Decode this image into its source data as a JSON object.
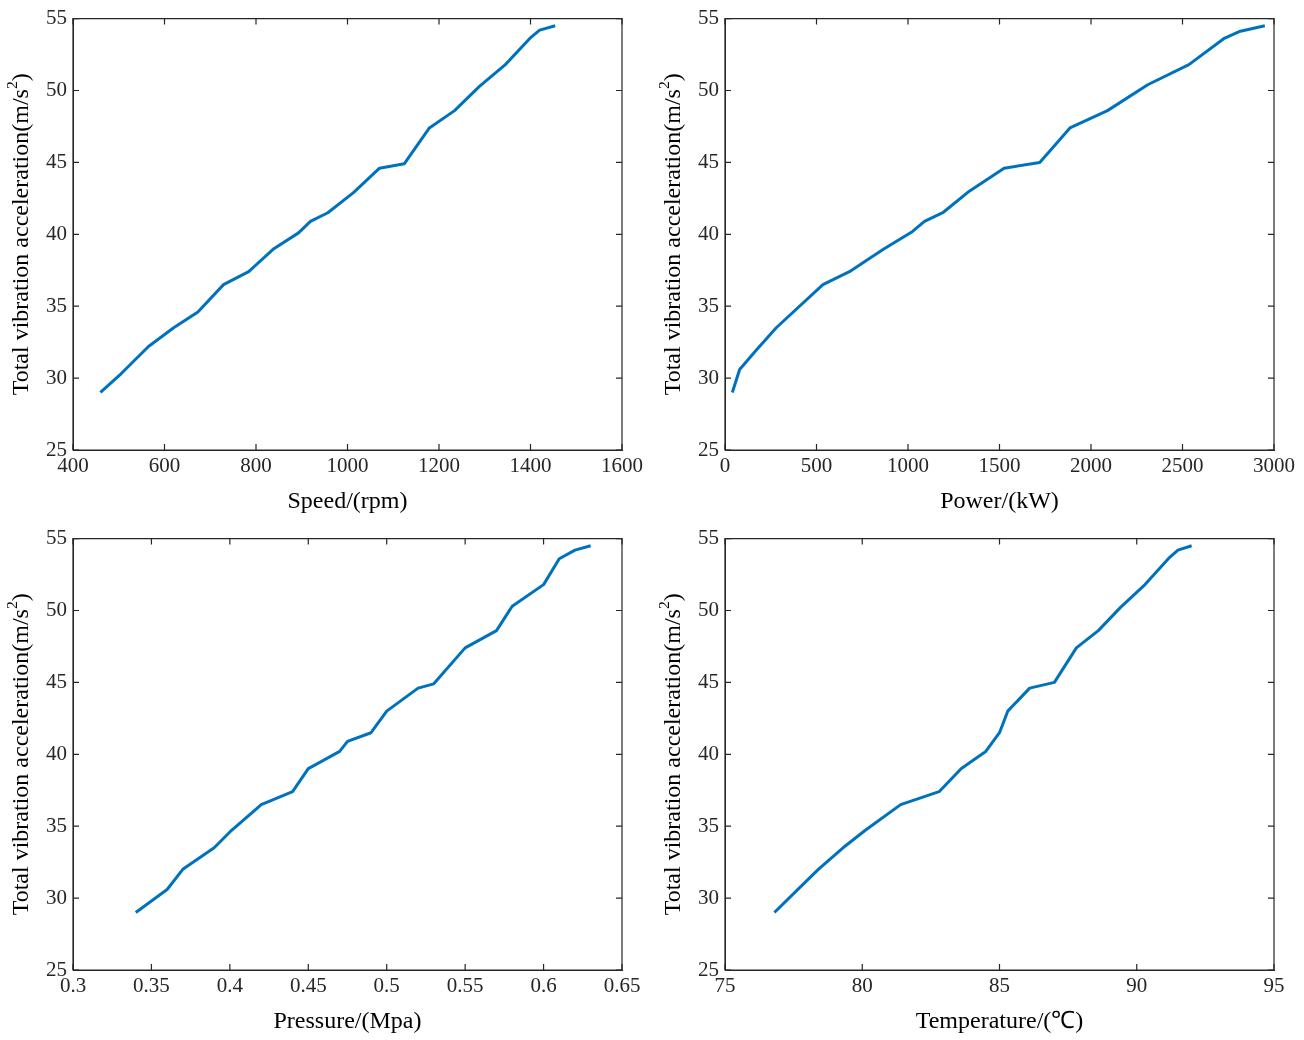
{
  "chart_data": [
    {
      "type": "line",
      "xlabel": "Speed/(rpm)",
      "ylabel": "Total vibration acceleration(m/s$^{2}$)",
      "xlim": [
        400,
        1600
      ],
      "xticks": [
        400,
        600,
        800,
        1000,
        1200,
        1400,
        1600
      ],
      "ylim": [
        25,
        55
      ],
      "yticks": [
        25,
        30,
        35,
        40,
        45,
        50,
        55
      ],
      "grid": false,
      "series": [
        {
          "color": "#0072bd",
          "x": [
            460,
            505,
            565,
            620,
            673,
            729,
            784,
            839,
            893,
            919,
            957,
            1013,
            1070,
            1124,
            1179,
            1234,
            1289,
            1345,
            1401,
            1420,
            1454
          ],
          "values": [
            29.0,
            30.3,
            32.2,
            33.5,
            34.6,
            36.5,
            37.4,
            39.0,
            40.1,
            40.9,
            41.5,
            42.9,
            44.6,
            44.9,
            47.4,
            48.6,
            50.3,
            51.8,
            53.7,
            54.2,
            54.5
          ]
        }
      ]
    },
    {
      "type": "line",
      "xlabel": "Power/(kW)",
      "ylabel": "Total vibration acceleration(m/s$^{2}$)",
      "xlim": [
        0,
        3000
      ],
      "xticks": [
        0,
        500,
        1000,
        1500,
        2000,
        2500,
        3000
      ],
      "ylim": [
        25,
        55
      ],
      "yticks": [
        25,
        30,
        35,
        40,
        45,
        50,
        55
      ],
      "grid": false,
      "series": [
        {
          "color": "#0072bd",
          "x": [
            40,
            80,
            175,
            280,
            535,
            680,
            870,
            1025,
            1090,
            1190,
            1335,
            1525,
            1720,
            1885,
            2090,
            2310,
            2535,
            2725,
            2810,
            2950
          ],
          "values": [
            29.0,
            30.6,
            32.0,
            33.5,
            36.5,
            37.4,
            39.0,
            40.2,
            40.9,
            41.5,
            43.0,
            44.6,
            45.0,
            47.4,
            48.6,
            50.4,
            51.8,
            53.6,
            54.1,
            54.5
          ]
        }
      ]
    },
    {
      "type": "line",
      "xlabel": "Pressure/(Mpa)",
      "ylabel": "Total vibration acceleration(m/s$^{2}$)",
      "xlim": [
        0.3,
        0.65
      ],
      "xticks": [
        0.3,
        0.35,
        0.4,
        0.45,
        0.5,
        0.55,
        0.6,
        0.65
      ],
      "ylim": [
        25,
        55
      ],
      "yticks": [
        25,
        30,
        35,
        40,
        45,
        50,
        55
      ],
      "grid": false,
      "series": [
        {
          "color": "#0072bd",
          "x": [
            0.34,
            0.36,
            0.37,
            0.39,
            0.4,
            0.42,
            0.44,
            0.45,
            0.47,
            0.475,
            0.49,
            0.5,
            0.52,
            0.53,
            0.55,
            0.57,
            0.58,
            0.6,
            0.61,
            0.62,
            0.63
          ],
          "values": [
            29.0,
            30.6,
            32.0,
            33.5,
            34.6,
            36.5,
            37.4,
            39.0,
            40.2,
            40.9,
            41.5,
            43.0,
            44.6,
            44.9,
            47.4,
            48.6,
            50.3,
            51.8,
            53.6,
            54.2,
            54.5
          ]
        }
      ]
    },
    {
      "type": "line",
      "xlabel": "Temperature/(℃)",
      "ylabel": "Total vibration acceleration(m/s$^{2}$)",
      "xlim": [
        75,
        95
      ],
      "xticks": [
        75,
        80,
        85,
        90,
        95
      ],
      "ylim": [
        25,
        55
      ],
      "yticks": [
        25,
        30,
        35,
        40,
        45,
        50,
        55
      ],
      "grid": false,
      "series": [
        {
          "color": "#0072bd",
          "x": [
            76.8,
            77.6,
            78.4,
            79.3,
            80.1,
            81.4,
            82.8,
            83.6,
            84.5,
            85.0,
            85.3,
            86.1,
            87.0,
            87.8,
            88.6,
            89.4,
            90.3,
            91.2,
            91.5,
            92.0
          ],
          "values": [
            29.0,
            30.5,
            32.0,
            33.5,
            34.7,
            36.5,
            37.4,
            39.0,
            40.2,
            41.5,
            43.0,
            44.6,
            45.0,
            47.4,
            48.6,
            50.2,
            51.8,
            53.7,
            54.2,
            54.5
          ]
        }
      ]
    }
  ]
}
